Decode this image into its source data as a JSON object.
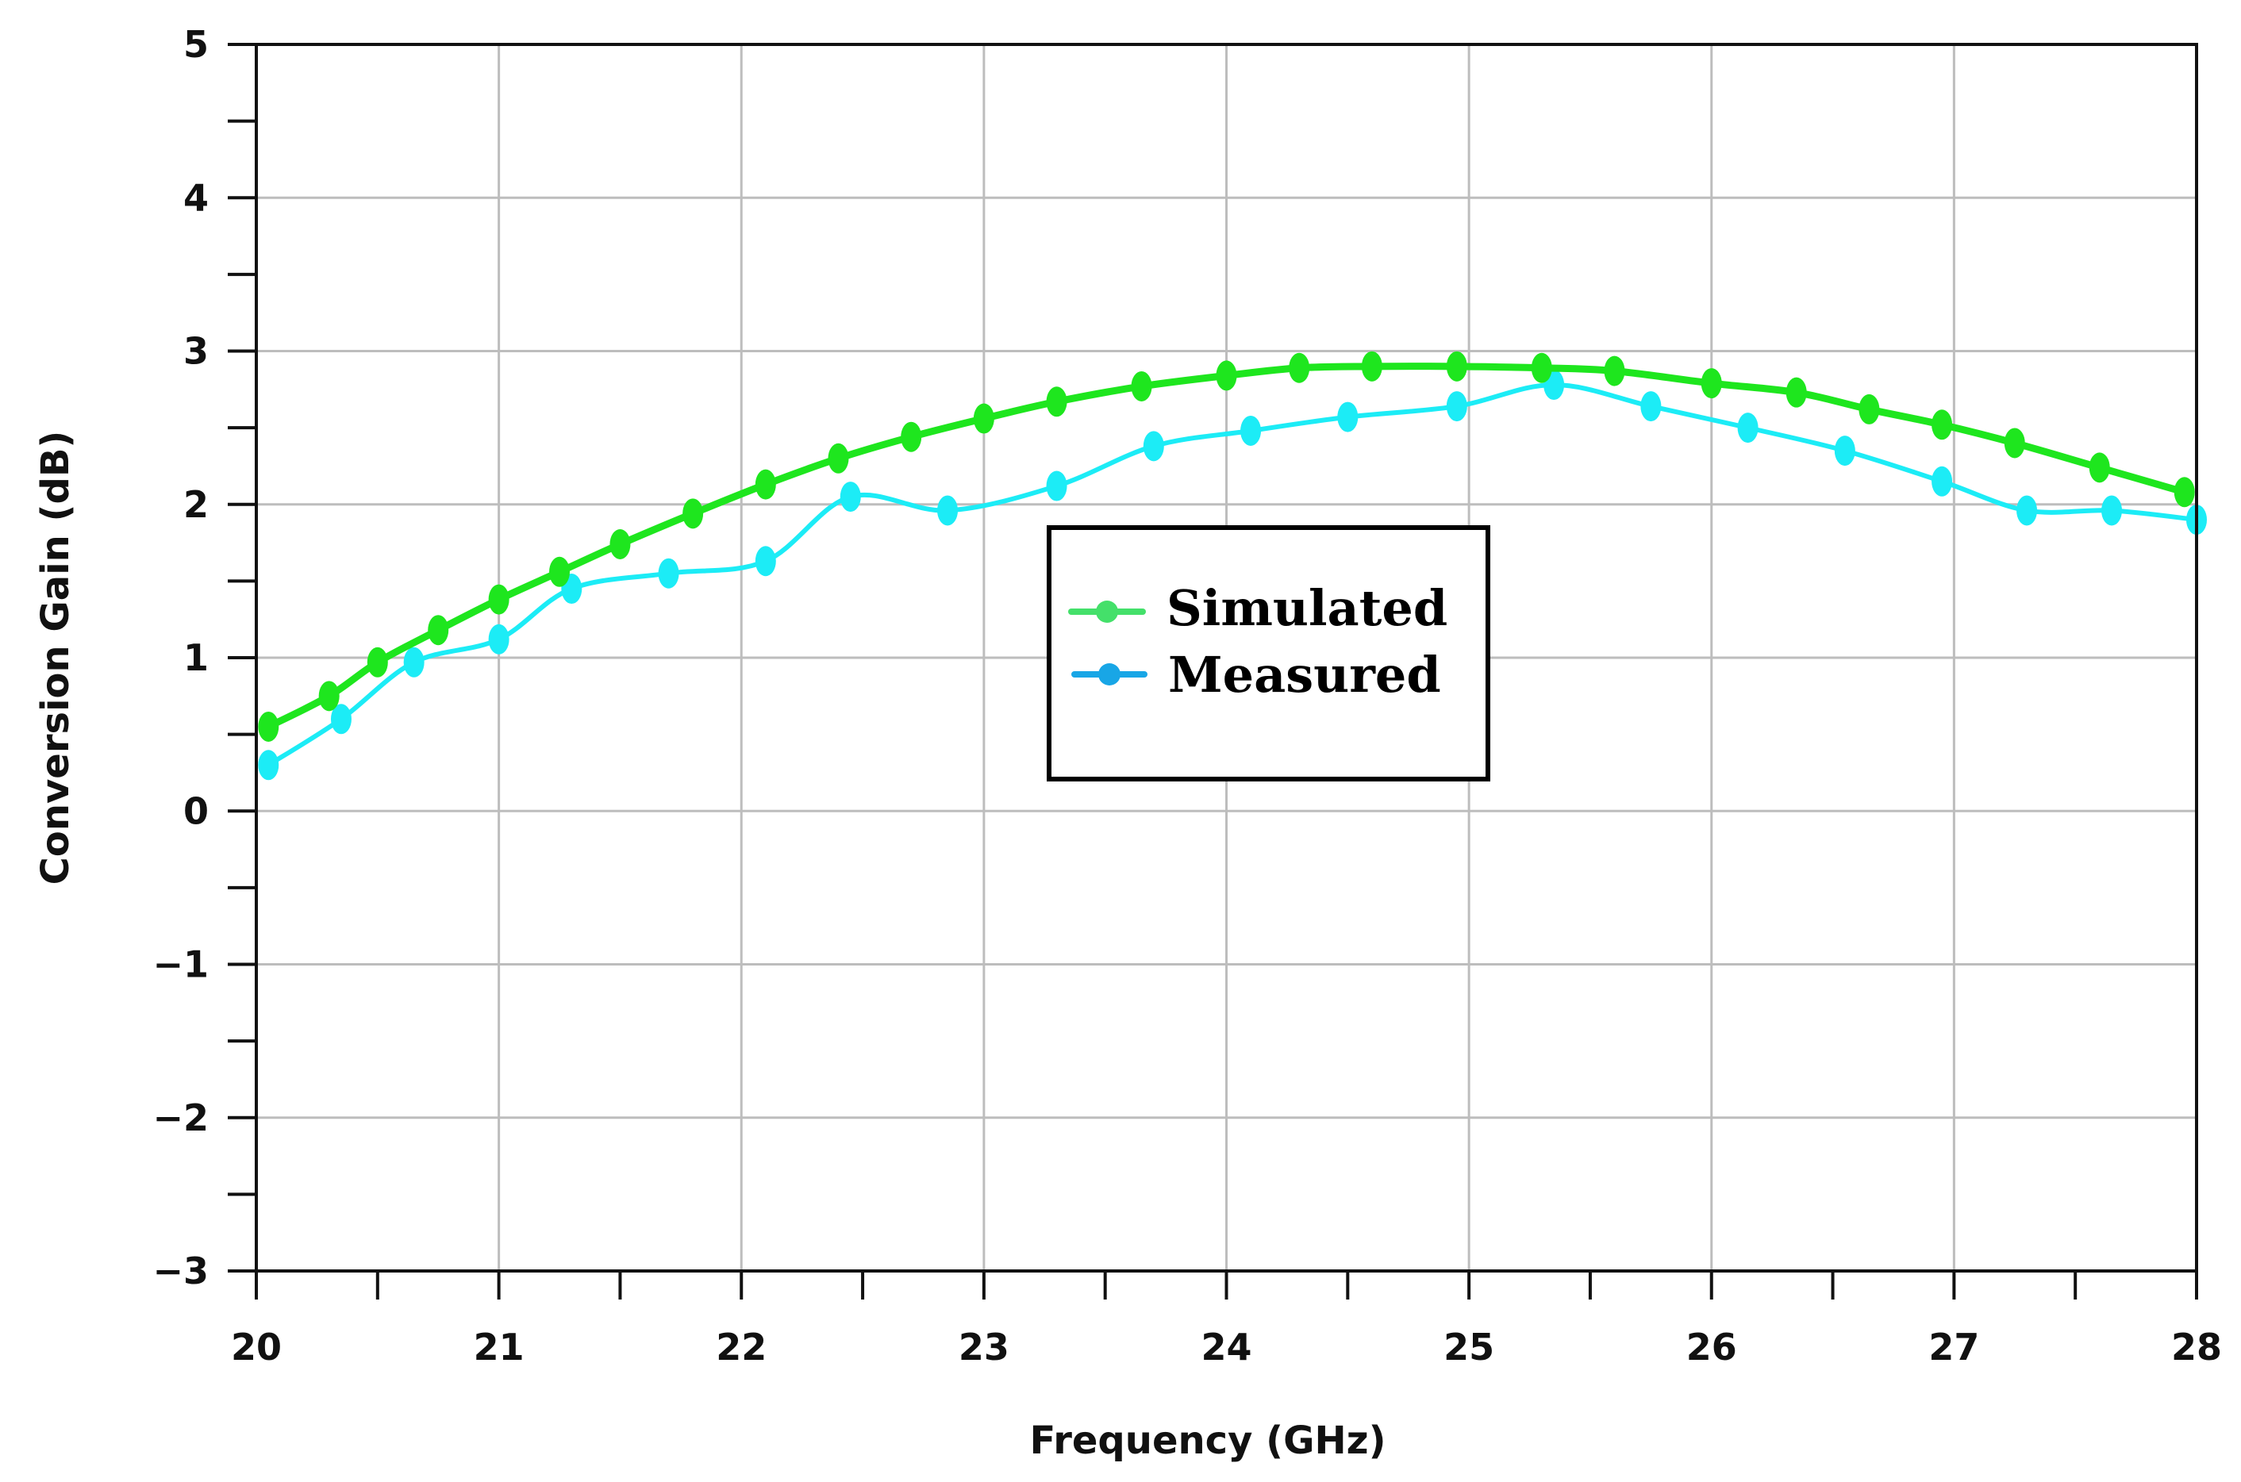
{
  "chart_data": {
    "type": "line",
    "title": "",
    "xlabel": "Frequency (GHz)",
    "ylabel": "Conversion Gain (dB)",
    "xlim": [
      20,
      28
    ],
    "ylim": [
      -3,
      5
    ],
    "xticks": [
      20,
      21,
      22,
      23,
      24,
      25,
      26,
      27,
      28
    ],
    "yticks": [
      5,
      4,
      3,
      2,
      1,
      0,
      -1,
      -2,
      -3
    ],
    "xtick_labels": [
      "20",
      "21",
      "22",
      "23",
      "24",
      "25",
      "26",
      "27",
      "28"
    ],
    "ytick_labels": [
      "5",
      "4",
      "3",
      "2",
      "1",
      "0",
      "−1",
      "−2",
      "−3"
    ],
    "grid": true,
    "legend_position": "center",
    "series": [
      {
        "name": "Simulated",
        "color": "#1ee61e",
        "legend_color": "#44e06a",
        "x": [
          20.05,
          20.3,
          20.5,
          20.75,
          21.0,
          21.25,
          21.5,
          21.8,
          22.1,
          22.4,
          22.7,
          23.0,
          23.3,
          23.65,
          24.0,
          24.3,
          24.6,
          24.95,
          25.3,
          25.6,
          26.0,
          26.35,
          26.65,
          26.95,
          27.25,
          27.6,
          27.95
        ],
        "y": [
          0.55,
          0.75,
          0.97,
          1.18,
          1.38,
          1.56,
          1.74,
          1.94,
          2.13,
          2.3,
          2.44,
          2.56,
          2.67,
          2.77,
          2.84,
          2.89,
          2.9,
          2.9,
          2.89,
          2.87,
          2.79,
          2.73,
          2.62,
          2.52,
          2.4,
          2.24,
          2.08
        ]
      },
      {
        "name": "Measured",
        "color": "#1cecf6",
        "legend_color": "#18a6e6",
        "x": [
          20.05,
          20.35,
          20.65,
          21.0,
          21.3,
          21.7,
          22.1,
          22.45,
          22.85,
          23.3,
          23.7,
          24.1,
          24.5,
          24.95,
          25.35,
          25.75,
          26.15,
          26.55,
          26.95,
          27.3,
          27.65,
          28.0
        ],
        "y": [
          0.3,
          0.6,
          0.97,
          1.12,
          1.45,
          1.55,
          1.63,
          2.05,
          1.96,
          2.12,
          2.38,
          2.48,
          2.57,
          2.64,
          2.78,
          2.64,
          2.5,
          2.35,
          2.15,
          1.96,
          1.96,
          1.9
        ]
      }
    ]
  }
}
